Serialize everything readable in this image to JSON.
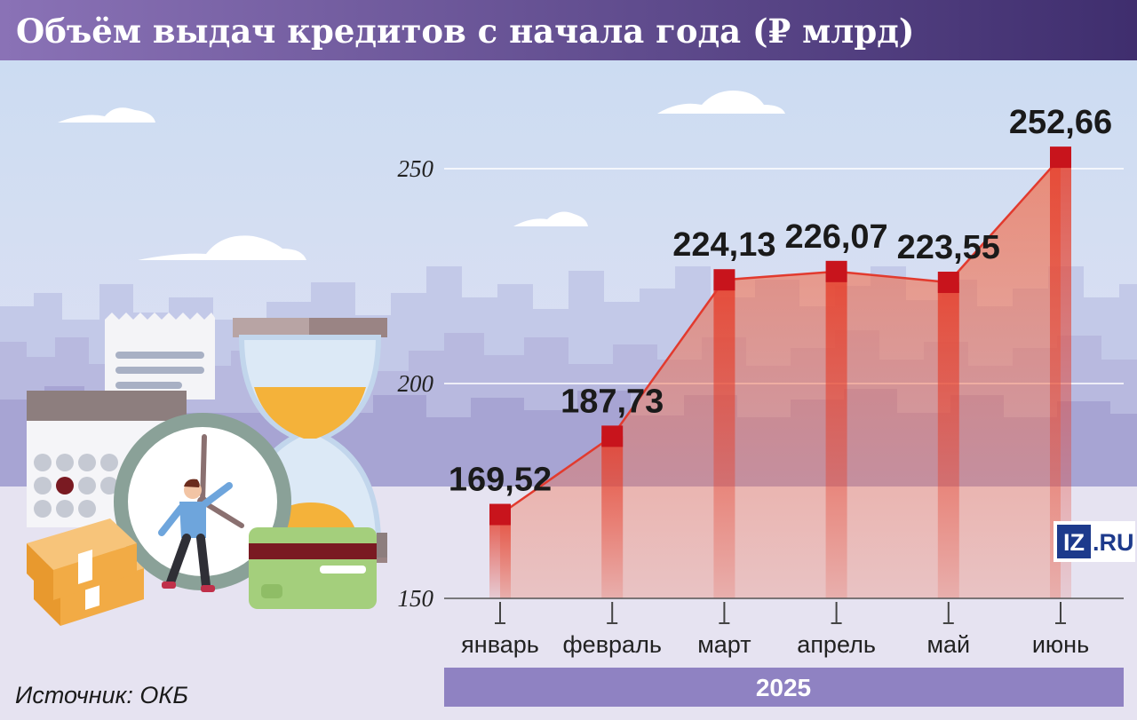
{
  "title": "Объём выдач кредитов с начала года (₽ млрд)",
  "source": "Источник: ОКБ",
  "logo": {
    "mark": "IZ",
    "suffix": ".RU"
  },
  "colors": {
    "header_start": "#8a72b6",
    "header_end": "#3f2e6e",
    "line": "#e23a2e",
    "marker": "#c8141c",
    "year_band": "#8f82c2"
  },
  "chart_data": {
    "type": "area",
    "categories": [
      "январь",
      "февраль",
      "март",
      "апрель",
      "май",
      "июнь"
    ],
    "values": [
      169.52,
      187.73,
      224.13,
      226.07,
      223.55,
      252.66
    ],
    "value_labels": [
      "169,52",
      "187,73",
      "224,13",
      "226,07",
      "223,55",
      "252,66"
    ],
    "y_ticks": [
      150,
      200,
      250
    ],
    "y_tick_labels": [
      "150",
      "200",
      "250"
    ],
    "ylim": [
      150,
      250
    ],
    "x_group_label": "2025",
    "grid": true
  }
}
